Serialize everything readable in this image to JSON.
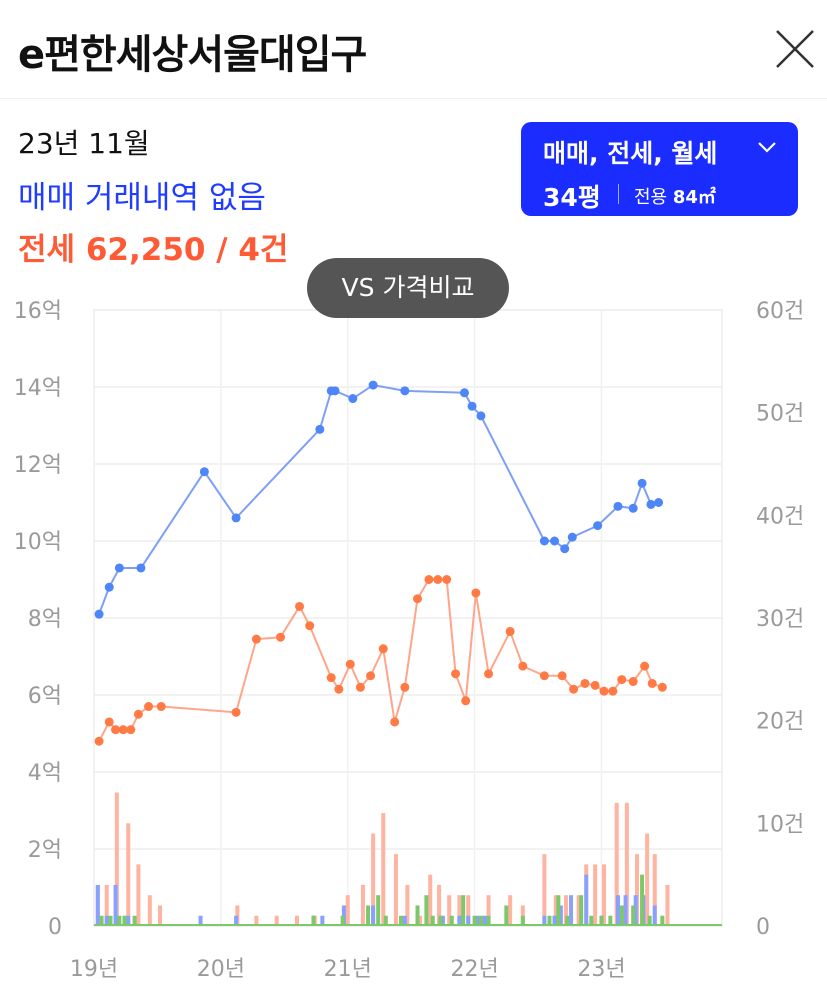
{
  "header": {
    "title": "e편한세상서울대입구",
    "close_icon": "close-icon"
  },
  "summary": {
    "date": "23년 11월",
    "sale_text": "매매 거래내역 없음",
    "jeonse_text": "전세 62,250 / 4건"
  },
  "filter": {
    "types": "매매, 전세, 월세",
    "pyeong": "34평",
    "area_label": "전용",
    "area_value": "84㎡"
  },
  "vs_button": "VS 가격비교",
  "colors": {
    "sale": "#4f86f7",
    "jeonse": "#ff7a45",
    "bar_sale": "#8aa0ff",
    "bar_jeonse": "#ffb3a1",
    "bar_wolse": "#7cc86b",
    "accent": "#1b2cff"
  },
  "chart_data": {
    "type": "line",
    "x_ticks": [
      "19년",
      "20년",
      "21년",
      "22년",
      "23년"
    ],
    "y_left_ticks": [
      "16억",
      "14억",
      "12억",
      "10억",
      "8억",
      "6억",
      "4억",
      "2억",
      "0"
    ],
    "y_right_ticks": [
      "60건",
      "50건",
      "40건",
      "30건",
      "20건",
      "10건",
      "0"
    ],
    "ylim_left": [
      0,
      16
    ],
    "ylim_right": [
      0,
      60
    ],
    "xlim": [
      2019.0,
      2023.95
    ],
    "grid": true,
    "series": [
      {
        "kind": "sale",
        "x": [
          2019.04,
          2019.12,
          2019.2,
          2019.37,
          2019.87,
          2020.12,
          2020.78,
          2020.87,
          2020.9,
          2021.04,
          2021.2,
          2021.45,
          2021.92,
          2021.98,
          2022.05,
          2022.55,
          2022.63,
          2022.71,
          2022.77,
          2022.97,
          2023.13,
          2023.25,
          2023.32,
          2023.39,
          2023.45
        ],
        "y": [
          8.1,
          8.8,
          9.3,
          9.3,
          11.8,
          10.6,
          12.9,
          13.9,
          13.9,
          13.7,
          14.05,
          13.9,
          13.85,
          13.5,
          13.25,
          10.0,
          10.0,
          9.8,
          10.1,
          10.4,
          10.9,
          10.85,
          11.5,
          10.95,
          11.0
        ]
      },
      {
        "kind": "jeonse",
        "x": [
          2019.04,
          2019.12,
          2019.17,
          2019.23,
          2019.29,
          2019.35,
          2019.43,
          2019.53,
          2020.12,
          2020.28,
          2020.47,
          2020.62,
          2020.7,
          2020.87,
          2020.93,
          2021.02,
          2021.1,
          2021.18,
          2021.28,
          2021.37,
          2021.45,
          2021.55,
          2021.64,
          2021.71,
          2021.78,
          2021.85,
          2021.93,
          2022.01,
          2022.11,
          2022.28,
          2022.38,
          2022.55,
          2022.69,
          2022.78,
          2022.87,
          2022.95,
          2023.02,
          2023.09,
          2023.16,
          2023.25,
          2023.34,
          2023.4,
          2023.48
        ],
        "y": [
          4.8,
          5.3,
          5.1,
          5.1,
          5.1,
          5.5,
          5.7,
          5.7,
          5.55,
          7.45,
          7.5,
          8.3,
          7.8,
          6.45,
          6.15,
          6.8,
          6.2,
          6.5,
          7.2,
          5.3,
          6.2,
          8.5,
          9.0,
          9.0,
          9.0,
          6.55,
          5.85,
          8.65,
          6.55,
          7.65,
          6.75,
          6.5,
          6.5,
          6.15,
          6.3,
          6.25,
          6.1,
          6.1,
          6.4,
          6.35,
          6.75,
          6.3,
          6.2
        ]
      }
    ],
    "bars": {
      "sale": {
        "x": [
          2019.03,
          2019.1,
          2019.17,
          2019.27,
          2019.84,
          2020.12,
          2020.73,
          2020.8,
          2020.97,
          2021.2,
          2021.45,
          2021.75,
          2021.88,
          2021.95,
          2022.02,
          2022.08,
          2022.55,
          2022.63,
          2022.68,
          2022.76,
          2022.88,
          2023.0,
          2023.13,
          2023.19,
          2023.27,
          2023.33,
          2023.42
        ],
        "y": [
          4,
          1,
          4,
          1,
          1,
          1,
          1,
          1,
          2,
          2,
          1,
          1,
          1,
          1,
          1,
          1,
          1,
          1,
          2,
          3,
          5,
          1,
          3,
          3,
          3,
          3,
          2
        ]
      },
      "jeonse": {
        "x": [
          2019.03,
          2019.1,
          2019.18,
          2019.27,
          2019.35,
          2019.44,
          2019.52,
          2020.13,
          2020.28,
          2020.44,
          2020.6,
          2020.74,
          2021.0,
          2021.12,
          2021.2,
          2021.28,
          2021.38,
          2021.47,
          2021.57,
          2021.65,
          2021.72,
          2021.8,
          2021.88,
          2021.95,
          2022.11,
          2022.28,
          2022.38,
          2022.55,
          2022.64,
          2022.72,
          2022.82,
          2022.88,
          2022.95,
          2023.02,
          2023.12,
          2023.2,
          2023.28,
          2023.36,
          2023.42,
          2023.52
        ],
        "y": [
          4,
          4,
          13,
          10,
          6,
          3,
          2,
          2,
          1,
          1,
          1,
          1,
          3,
          4,
          9,
          11,
          7,
          4,
          1,
          5,
          4,
          3,
          3,
          3,
          3,
          3,
          2,
          7,
          3,
          3,
          3,
          6,
          6,
          6,
          12,
          12,
          7,
          9,
          7,
          4
        ]
      },
      "wolse": {
        "x": [
          2019.06,
          2019.13,
          2019.2,
          2019.24,
          2019.32,
          2020.73,
          2020.96,
          2021.16,
          2021.24,
          2021.3,
          2021.42,
          2021.55,
          2021.62,
          2021.67,
          2021.73,
          2021.82,
          2021.91,
          2022.0,
          2022.05,
          2022.11,
          2022.25,
          2022.38,
          2022.59,
          2022.66,
          2022.73,
          2022.84,
          2022.92,
          2023.0,
          2023.07,
          2023.16,
          2023.25,
          2023.32,
          2023.38,
          2023.48
        ],
        "y": [
          1,
          1,
          1,
          1,
          1,
          1,
          1,
          2,
          3,
          1,
          1,
          2,
          3,
          1,
          1,
          1,
          3,
          1,
          1,
          1,
          2,
          1,
          1,
          3,
          1,
          3,
          1,
          1,
          1,
          2,
          2,
          5,
          1,
          1
        ]
      }
    }
  }
}
